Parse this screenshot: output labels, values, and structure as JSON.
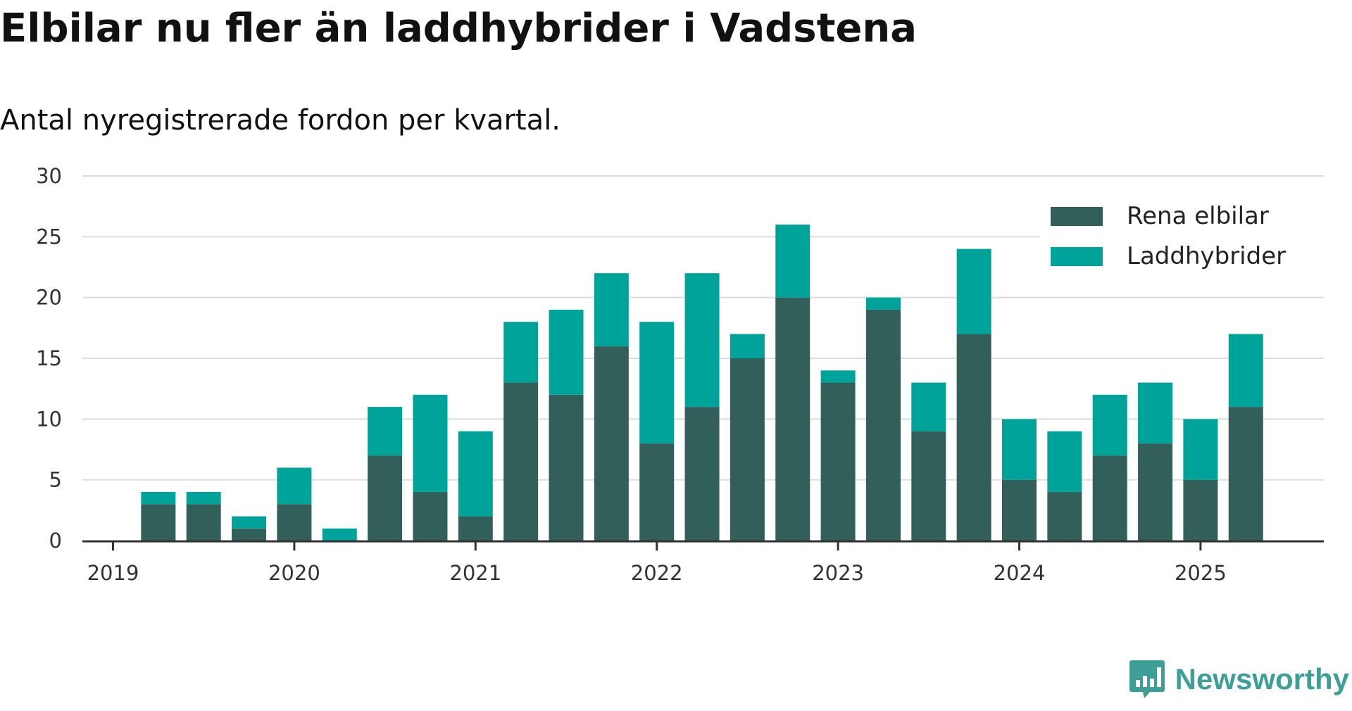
{
  "title": "Elbilar nu fler än laddhybrider i Vadstena",
  "subtitle": "Antal nyregistrerade fordon per kvartal.",
  "brand": {
    "name": "Newsworthy",
    "icon": "newsworthy-logo-icon"
  },
  "colors": {
    "rena": "#335f5b",
    "ladd": "#00a39a",
    "grid": "#dcdcdc",
    "axis": "#333333"
  },
  "chart_data": {
    "type": "bar",
    "stacked": true,
    "title": "Elbilar nu fler än laddhybrider i Vadstena",
    "subtitle": "Antal nyregistrerade fordon per kvartal.",
    "categories": [
      "2019 Q1",
      "2019 Q2",
      "2019 Q3",
      "2019 Q4",
      "2020 Q1",
      "2020 Q2",
      "2020 Q3",
      "2020 Q4",
      "2021 Q1",
      "2021 Q2",
      "2021 Q3",
      "2021 Q4",
      "2022 Q1",
      "2022 Q2",
      "2022 Q3",
      "2022 Q4",
      "2023 Q1",
      "2023 Q2",
      "2023 Q3",
      "2023 Q4",
      "2024 Q1",
      "2024 Q2",
      "2024 Q3",
      "2024 Q4",
      "2025 Q1",
      "2025 Q2"
    ],
    "x_ticks": [
      "2019",
      "2020",
      "2021",
      "2022",
      "2023",
      "2024",
      "2025"
    ],
    "y_ticks": [
      0,
      5,
      10,
      15,
      20,
      25,
      30
    ],
    "ylim": [
      0,
      30
    ],
    "grid": true,
    "legend_position": "top-right",
    "series": [
      {
        "name": "Rena elbilar",
        "values": [
          0,
          3,
          3,
          1,
          3,
          0,
          7,
          4,
          2,
          13,
          12,
          16,
          8,
          11,
          15,
          20,
          13,
          19,
          9,
          17,
          5,
          4,
          7,
          8,
          5,
          11
        ]
      },
      {
        "name": "Laddhybrider",
        "values": [
          0,
          1,
          1,
          1,
          3,
          1,
          4,
          8,
          7,
          5,
          7,
          6,
          10,
          11,
          2,
          6,
          1,
          1,
          4,
          7,
          5,
          5,
          5,
          5,
          5,
          6
        ]
      }
    ]
  }
}
